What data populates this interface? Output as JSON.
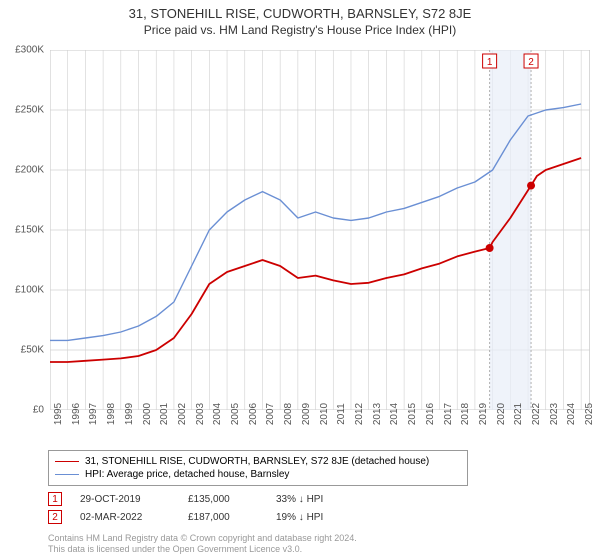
{
  "title": "31, STONEHILL RISE, CUDWORTH, BARNSLEY, S72 8JE",
  "subtitle": "Price paid vs. HM Land Registry's House Price Index (HPI)",
  "chart": {
    "type": "line",
    "background_color": "#ffffff",
    "grid_color": "#d0d0d0",
    "border_color": "#b0b0b0",
    "xlim": [
      1995,
      2025.5
    ],
    "ylim": [
      0,
      300000
    ],
    "ytick_step": 50000,
    "yticks": [
      0,
      50000,
      100000,
      150000,
      200000,
      250000,
      300000
    ],
    "ytick_labels": [
      "£0",
      "£50K",
      "£100K",
      "£150K",
      "£200K",
      "£250K",
      "£300K"
    ],
    "xticks": [
      1995,
      1996,
      1997,
      1998,
      1999,
      2000,
      2001,
      2002,
      2003,
      2004,
      2005,
      2006,
      2007,
      2008,
      2009,
      2010,
      2011,
      2012,
      2013,
      2014,
      2015,
      2016,
      2017,
      2018,
      2019,
      2020,
      2021,
      2022,
      2023,
      2024,
      2025
    ],
    "title_fontsize": 13,
    "label_fontsize": 10,
    "series": [
      {
        "name": "property",
        "color": "#cc0000",
        "line_width": 1.8,
        "label": "31, STONEHILL RISE, CUDWORTH, BARNSLEY, S72 8JE (detached house)",
        "data": [
          [
            1995,
            40000
          ],
          [
            1996,
            40000
          ],
          [
            1997,
            41000
          ],
          [
            1998,
            42000
          ],
          [
            1999,
            43000
          ],
          [
            2000,
            45000
          ],
          [
            2001,
            50000
          ],
          [
            2002,
            60000
          ],
          [
            2003,
            80000
          ],
          [
            2004,
            105000
          ],
          [
            2005,
            115000
          ],
          [
            2006,
            120000
          ],
          [
            2007,
            125000
          ],
          [
            2008,
            120000
          ],
          [
            2009,
            110000
          ],
          [
            2010,
            112000
          ],
          [
            2011,
            108000
          ],
          [
            2012,
            105000
          ],
          [
            2013,
            106000
          ],
          [
            2014,
            110000
          ],
          [
            2015,
            113000
          ],
          [
            2016,
            118000
          ],
          [
            2017,
            122000
          ],
          [
            2018,
            128000
          ],
          [
            2019,
            132000
          ],
          [
            2019.83,
            135000
          ],
          [
            2020,
            140000
          ],
          [
            2021,
            160000
          ],
          [
            2022.17,
            187000
          ],
          [
            2022.5,
            195000
          ],
          [
            2023,
            200000
          ],
          [
            2024,
            205000
          ],
          [
            2025,
            210000
          ]
        ]
      },
      {
        "name": "hpi",
        "color": "#6a8fd4",
        "line_width": 1.4,
        "label": "HPI: Average price, detached house, Barnsley",
        "data": [
          [
            1995,
            58000
          ],
          [
            1996,
            58000
          ],
          [
            1997,
            60000
          ],
          [
            1998,
            62000
          ],
          [
            1999,
            65000
          ],
          [
            2000,
            70000
          ],
          [
            2001,
            78000
          ],
          [
            2002,
            90000
          ],
          [
            2003,
            120000
          ],
          [
            2004,
            150000
          ],
          [
            2005,
            165000
          ],
          [
            2006,
            175000
          ],
          [
            2007,
            182000
          ],
          [
            2008,
            175000
          ],
          [
            2009,
            160000
          ],
          [
            2010,
            165000
          ],
          [
            2011,
            160000
          ],
          [
            2012,
            158000
          ],
          [
            2013,
            160000
          ],
          [
            2014,
            165000
          ],
          [
            2015,
            168000
          ],
          [
            2016,
            173000
          ],
          [
            2017,
            178000
          ],
          [
            2018,
            185000
          ],
          [
            2019,
            190000
          ],
          [
            2020,
            200000
          ],
          [
            2021,
            225000
          ],
          [
            2022,
            245000
          ],
          [
            2023,
            250000
          ],
          [
            2024,
            252000
          ],
          [
            2025,
            255000
          ]
        ]
      }
    ],
    "markers": [
      {
        "index": "1",
        "x": 2019.83,
        "y": 135000,
        "date": "29-OCT-2019",
        "price": "£135,000",
        "pct": "33% ↓ HPI",
        "dot_color": "#cc0000",
        "dot_radius": 4
      },
      {
        "index": "2",
        "x": 2022.17,
        "y": 187000,
        "date": "02-MAR-2022",
        "price": "£187,000",
        "pct": "19% ↓ HPI",
        "dot_color": "#cc0000",
        "dot_radius": 4
      }
    ],
    "marker_band": {
      "x_start": 2019.83,
      "x_end": 2022.17,
      "fill_color": "#e8eef8",
      "line_color": "#b0b0b0"
    }
  },
  "footer": {
    "line1": "Contains HM Land Registry data © Crown copyright and database right 2024.",
    "line2": "This data is licensed under the Open Government Licence v3.0."
  }
}
